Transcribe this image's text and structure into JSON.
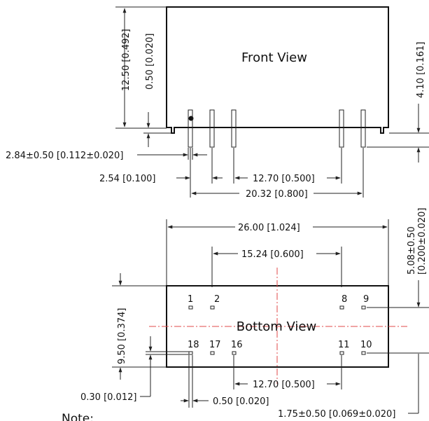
{
  "front_view": {
    "title": "Front View",
    "dims": {
      "height": "12.50 [0.492]",
      "standoff": "0.50 [0.020]",
      "pin_length": "4.10 [0.161]",
      "pin_width": "2.84±0.50 [0.112±0.020]",
      "pin_pitch": "2.54 [0.100]",
      "pin_group_spacing": "12.70 [0.500]",
      "pin_span": "20.32 [0.800]"
    }
  },
  "bottom_view": {
    "title": "Bottom View",
    "dims": {
      "length": "26.00 [1.024]",
      "pin_row_spacing": "15.24 [0.600]",
      "width": "9.50 [0.374]",
      "edge_offset": "5.08±0.50\n[0.200±0.020]",
      "pin_size": "0.30 [0.012]",
      "pin_pad": "0.50 [0.020]",
      "lower_spacing": "12.70 [0.500]",
      "pin_offset": "1.75±0.50 [0.069±0.020]"
    },
    "pins_top": [
      "1",
      "2",
      "8",
      "9"
    ],
    "pins_bottom": [
      "18",
      "17",
      "16",
      "11",
      "10"
    ]
  },
  "note": "Note:"
}
